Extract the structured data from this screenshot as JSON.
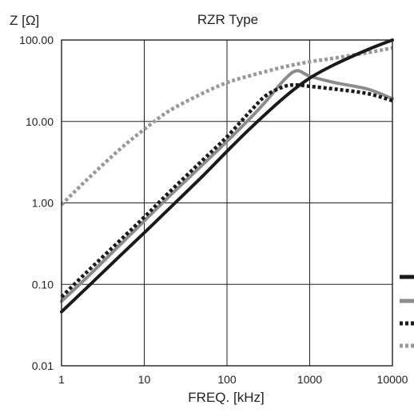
{
  "chart_data": {
    "type": "line",
    "title": "RZR Type",
    "xlabel": "FREQ. [kHz]",
    "ylabel": "Z [Ω]",
    "x_scale": "log",
    "y_scale": "log",
    "xlim": [
      1,
      10000
    ],
    "ylim": [
      0.01,
      100
    ],
    "x_ticks": [
      1,
      10,
      100,
      1000,
      10000
    ],
    "x_tick_labels": [
      "1",
      "10",
      "100",
      "1000",
      "10000"
    ],
    "y_ticks": [
      0.01,
      0.1,
      1,
      10,
      100
    ],
    "y_tick_labels": [
      "0.01",
      "0.10",
      "1.00",
      "10.00",
      "100.00"
    ],
    "grid": true,
    "legend": "right",
    "series": [
      {
        "color": "#1a1a1a",
        "style": "solid",
        "x": [
          1,
          2,
          5,
          10,
          20,
          50,
          100,
          200,
          500,
          1000,
          2000,
          5000,
          10000
        ],
        "values": [
          0.046,
          0.09,
          0.22,
          0.43,
          0.85,
          2.1,
          4.3,
          8.6,
          20,
          34,
          50,
          76,
          100
        ]
      },
      {
        "color": "#8c8c8c",
        "style": "solid",
        "x": [
          1,
          2,
          5,
          10,
          20,
          50,
          100,
          200,
          300,
          500,
          700,
          1000,
          2000,
          5000,
          10000
        ],
        "values": [
          0.062,
          0.12,
          0.3,
          0.6,
          1.2,
          2.9,
          5.7,
          11.5,
          18,
          33,
          42,
          36,
          30,
          25,
          19
        ]
      },
      {
        "color": "#1a1a1a",
        "style": "dotted",
        "x": [
          1,
          2,
          5,
          10,
          20,
          50,
          100,
          200,
          300,
          500,
          700,
          1000,
          2000,
          5000,
          10000
        ],
        "values": [
          0.07,
          0.14,
          0.34,
          0.67,
          1.35,
          3.3,
          6.5,
          14,
          21,
          27,
          28,
          27,
          25,
          22,
          18
        ]
      },
      {
        "color": "#999999",
        "style": "dotted",
        "x": [
          1,
          2,
          5,
          10,
          20,
          50,
          100,
          200,
          500,
          1000,
          2000,
          5000,
          10000
        ],
        "values": [
          0.95,
          1.9,
          4.5,
          8.0,
          13.5,
          22,
          30,
          37,
          47,
          54,
          60,
          70,
          80
        ]
      }
    ]
  }
}
